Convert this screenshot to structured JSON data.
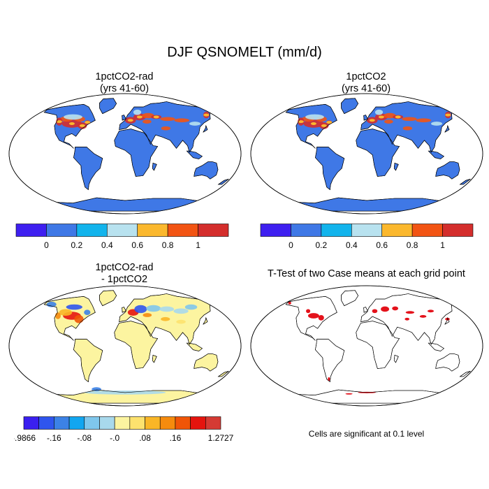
{
  "figure": {
    "title": "DJF QSNOMELT (mm/d)"
  },
  "panels": [
    {
      "id": "rad",
      "title_line1": "1pctCO2-rad",
      "title_line2": "(yrs 41-60)",
      "colorbar": "abs"
    },
    {
      "id": "ctl",
      "title_line1": "1pctCO2",
      "title_line2": "(yrs 41-60)",
      "colorbar": "abs"
    },
    {
      "id": "diff",
      "title_line1": "1pctCO2-rad",
      "title_line2": "- 1pctCO2",
      "colorbar": "diff"
    },
    {
      "id": "ttest",
      "title_line1": "T-Test of two Case means at each grid point",
      "title_line2": "",
      "note": "Cells are significant at 0.1 level"
    }
  ],
  "colorbars": {
    "abs": {
      "colors": [
        "#3e1ff0",
        "#3f78e6",
        "#12b4ec",
        "#b8e2ef",
        "#fbb82d",
        "#f25413",
        "#d42e2c"
      ],
      "labels": [
        "0",
        "0.2",
        "0.4",
        "0.6",
        "0.8",
        "1"
      ]
    },
    "diff": {
      "colors": [
        "#3a1ff0",
        "#2f55ee",
        "#3c82e6",
        "#12a6f0",
        "#7fc7ec",
        "#a8d9ec",
        "#fcf4a0",
        "#fde26e",
        "#f9b626",
        "#f58b0d",
        "#f05507",
        "#e5140e",
        "#d53a33"
      ],
      "labels": [
        "-.9866",
        "-.16",
        "-.08",
        "-.0",
        ".08",
        ".16",
        "1.2727"
      ]
    }
  },
  "significance_color": "#e4121b",
  "ocean_color": "#ffffff",
  "land_fill": {
    "abs": "#3f78e6",
    "diff": "#fcf4a0",
    "ttest": "#ffffff"
  }
}
